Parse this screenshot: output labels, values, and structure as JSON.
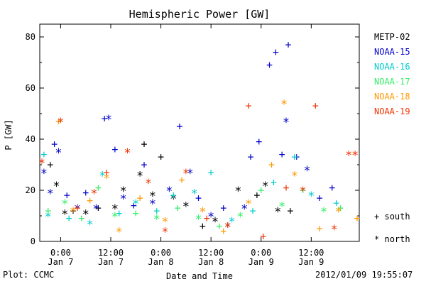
{
  "chart_data": {
    "type": "scatter",
    "title": "Hemispheric Power [GW]",
    "xlabel": "Date and Time",
    "ylabel": "P [GW]",
    "xlim": [
      "2012-01-06T19:00",
      "2012-01-09T23:30"
    ],
    "ylim": [
      0,
      85
    ],
    "y_ticks": [
      0,
      20,
      40,
      60,
      80
    ],
    "x_ticks": [
      {
        "time": "2012-01-07T00:00",
        "line1": "0:00",
        "line2": "Jan 7"
      },
      {
        "time": "2012-01-07T12:00",
        "line1": "12:00",
        "line2": "Jan 7"
      },
      {
        "time": "2012-01-08T00:00",
        "line1": "0:00",
        "line2": "Jan 8"
      },
      {
        "time": "2012-01-08T12:00",
        "line1": "12:00",
        "line2": "Jan 8"
      },
      {
        "time": "2012-01-09T00:00",
        "line1": "0:00",
        "line2": "Jan 9"
      },
      {
        "time": "2012-01-09T12:00",
        "line1": "12:00",
        "line2": "Jan 9"
      }
    ],
    "markers": {
      "south": "+",
      "north": "*"
    },
    "marker_legend": {
      "south": "south",
      "north": "north"
    },
    "series": [
      {
        "name": "METP-02",
        "color": "#000000",
        "points": [
          {
            "t": "2012-01-06T21:30",
            "p": 30,
            "h": "south"
          },
          {
            "t": "2012-01-06T23:00",
            "p": 22,
            "h": "north"
          },
          {
            "t": "2012-01-07T01:00",
            "p": 11,
            "h": "north"
          },
          {
            "t": "2012-01-07T03:00",
            "p": 12,
            "h": "south"
          },
          {
            "t": "2012-01-07T06:00",
            "p": 11,
            "h": "north"
          },
          {
            "t": "2012-01-07T09:00",
            "p": 13,
            "h": "south"
          },
          {
            "t": "2012-01-07T13:00",
            "p": 13,
            "h": "north"
          },
          {
            "t": "2012-01-07T15:00",
            "p": 20,
            "h": "north"
          },
          {
            "t": "2012-01-07T19:00",
            "p": 26,
            "h": "north"
          },
          {
            "t": "2012-01-07T20:00",
            "p": 38,
            "h": "south"
          },
          {
            "t": "2012-01-07T22:00",
            "p": 18,
            "h": "north"
          },
          {
            "t": "2012-01-08T00:00",
            "p": 33,
            "h": "south"
          },
          {
            "t": "2012-01-08T03:00",
            "p": 17,
            "h": "north"
          },
          {
            "t": "2012-01-08T06:00",
            "p": 14,
            "h": "north"
          },
          {
            "t": "2012-01-08T10:00",
            "p": 6,
            "h": "south"
          },
          {
            "t": "2012-01-08T13:00",
            "p": 8,
            "h": "north"
          },
          {
            "t": "2012-01-08T16:00",
            "p": 6,
            "h": "north"
          },
          {
            "t": "2012-01-08T18:30",
            "p": 20,
            "h": "north"
          },
          {
            "t": "2012-01-08T23:00",
            "p": 18,
            "h": "south"
          },
          {
            "t": "2012-01-09T01:00",
            "p": 22,
            "h": "north"
          },
          {
            "t": "2012-01-09T04:00",
            "p": 12,
            "h": "north"
          },
          {
            "t": "2012-01-09T07:00",
            "p": 12,
            "h": "south"
          }
        ]
      },
      {
        "name": "NOAA-15",
        "color": "#0000cc",
        "points": [
          {
            "t": "2012-01-06T20:00",
            "p": 27,
            "h": "north"
          },
          {
            "t": "2012-01-06T21:30",
            "p": 19,
            "h": "north"
          },
          {
            "t": "2012-01-06T22:30",
            "p": 38,
            "h": "south"
          },
          {
            "t": "2012-01-06T23:30",
            "p": 35,
            "h": "north"
          },
          {
            "t": "2012-01-07T01:30",
            "p": 18,
            "h": "south"
          },
          {
            "t": "2012-01-07T04:00",
            "p": 13,
            "h": "north"
          },
          {
            "t": "2012-01-07T06:00",
            "p": 19,
            "h": "south"
          },
          {
            "t": "2012-01-07T08:30",
            "p": 13,
            "h": "north"
          },
          {
            "t": "2012-01-07T10:30",
            "p": 48,
            "h": "south"
          },
          {
            "t": "2012-01-07T11:30",
            "p": 48,
            "h": "north"
          },
          {
            "t": "2012-01-07T13:00",
            "p": 36,
            "h": "south"
          },
          {
            "t": "2012-01-07T15:00",
            "p": 17,
            "h": "north"
          },
          {
            "t": "2012-01-07T17:30",
            "p": 14,
            "h": "south"
          },
          {
            "t": "2012-01-07T20:00",
            "p": 30,
            "h": "south"
          },
          {
            "t": "2012-01-07T22:00",
            "p": 15,
            "h": "north"
          },
          {
            "t": "2012-01-08T02:00",
            "p": 20,
            "h": "north"
          },
          {
            "t": "2012-01-08T04:30",
            "p": 45,
            "h": "south"
          },
          {
            "t": "2012-01-08T07:00",
            "p": 27,
            "h": "north"
          },
          {
            "t": "2012-01-08T09:00",
            "p": 17,
            "h": "south"
          },
          {
            "t": "2012-01-08T12:00",
            "p": 10,
            "h": "north"
          },
          {
            "t": "2012-01-08T15:00",
            "p": 13,
            "h": "south"
          },
          {
            "t": "2012-01-08T20:00",
            "p": 13,
            "h": "north"
          },
          {
            "t": "2012-01-08T21:30",
            "p": 33,
            "h": "south"
          },
          {
            "t": "2012-01-08T23:30",
            "p": 39,
            "h": "south"
          },
          {
            "t": "2012-01-09T02:00",
            "p": 69,
            "h": "south"
          },
          {
            "t": "2012-01-09T03:30",
            "p": 74,
            "h": "south"
          },
          {
            "t": "2012-01-09T05:00",
            "p": 34,
            "h": "south"
          },
          {
            "t": "2012-01-09T06:00",
            "p": 47,
            "h": "north"
          },
          {
            "t": "2012-01-09T06:30",
            "p": 77,
            "h": "south"
          },
          {
            "t": "2012-01-09T08:30",
            "p": 33,
            "h": "south"
          },
          {
            "t": "2012-01-09T11:00",
            "p": 28,
            "h": "north"
          },
          {
            "t": "2012-01-09T14:00",
            "p": 17,
            "h": "south"
          },
          {
            "t": "2012-01-09T17:00",
            "p": 21,
            "h": "south"
          }
        ]
      },
      {
        "name": "NOAA-16",
        "color": "#00cccc",
        "points": [
          {
            "t": "2012-01-06T20:00",
            "p": 34,
            "h": "south"
          },
          {
            "t": "2012-01-06T21:00",
            "p": 10,
            "h": "north"
          },
          {
            "t": "2012-01-07T02:00",
            "p": 9,
            "h": "south"
          },
          {
            "t": "2012-01-07T07:00",
            "p": 7,
            "h": "north"
          },
          {
            "t": "2012-01-07T10:00",
            "p": 26,
            "h": "north"
          },
          {
            "t": "2012-01-07T14:00",
            "p": 11,
            "h": "south"
          },
          {
            "t": "2012-01-07T18:00",
            "p": 15,
            "h": "north"
          },
          {
            "t": "2012-01-07T23:00",
            "p": 12,
            "h": "south"
          },
          {
            "t": "2012-01-08T03:00",
            "p": 18,
            "h": "south"
          },
          {
            "t": "2012-01-08T08:00",
            "p": 19,
            "h": "north"
          },
          {
            "t": "2012-01-08T12:00",
            "p": 27,
            "h": "south"
          },
          {
            "t": "2012-01-08T17:00",
            "p": 8,
            "h": "north"
          },
          {
            "t": "2012-01-08T22:00",
            "p": 12,
            "h": "south"
          },
          {
            "t": "2012-01-09T03:00",
            "p": 23,
            "h": "south"
          },
          {
            "t": "2012-01-09T08:00",
            "p": 33,
            "h": "south"
          },
          {
            "t": "2012-01-09T12:00",
            "p": 18,
            "h": "north"
          },
          {
            "t": "2012-01-09T18:00",
            "p": 15,
            "h": "south"
          }
        ]
      },
      {
        "name": "NOAA-17",
        "color": "#33ee66",
        "points": [
          {
            "t": "2012-01-06T21:00",
            "p": 12,
            "h": "south"
          },
          {
            "t": "2012-01-07T01:00",
            "p": 15,
            "h": "north"
          },
          {
            "t": "2012-01-07T05:00",
            "p": 9,
            "h": "south"
          },
          {
            "t": "2012-01-07T09:00",
            "p": 21,
            "h": "south"
          },
          {
            "t": "2012-01-07T13:00",
            "p": 10,
            "h": "north"
          },
          {
            "t": "2012-01-07T18:00",
            "p": 11,
            "h": "south"
          },
          {
            "t": "2012-01-07T23:00",
            "p": 9,
            "h": "north"
          },
          {
            "t": "2012-01-08T04:00",
            "p": 13,
            "h": "south"
          },
          {
            "t": "2012-01-08T09:00",
            "p": 9,
            "h": "north"
          },
          {
            "t": "2012-01-08T14:00",
            "p": 6,
            "h": "south"
          },
          {
            "t": "2012-01-08T19:00",
            "p": 10,
            "h": "north"
          },
          {
            "t": "2012-01-09T00:00",
            "p": 20,
            "h": "south"
          },
          {
            "t": "2012-01-09T05:00",
            "p": 14,
            "h": "north"
          },
          {
            "t": "2012-01-09T10:00",
            "p": 20,
            "h": "south"
          },
          {
            "t": "2012-01-09T15:00",
            "p": 12,
            "h": "north"
          },
          {
            "t": "2012-01-09T19:00",
            "p": 13,
            "h": "south"
          }
        ]
      },
      {
        "name": "NOAA-18",
        "color": "#ff9900",
        "points": [
          {
            "t": "2012-01-06T23:30",
            "p": 47,
            "h": "south"
          },
          {
            "t": "2012-01-07T03:00",
            "p": 12,
            "h": "north"
          },
          {
            "t": "2012-01-07T07:00",
            "p": 16,
            "h": "south"
          },
          {
            "t": "2012-01-07T11:00",
            "p": 25,
            "h": "north"
          },
          {
            "t": "2012-01-07T14:00",
            "p": 4,
            "h": "north"
          },
          {
            "t": "2012-01-07T19:00",
            "p": 17,
            "h": "south"
          },
          {
            "t": "2012-01-08T01:00",
            "p": 8,
            "h": "north"
          },
          {
            "t": "2012-01-08T05:00",
            "p": 24,
            "h": "south"
          },
          {
            "t": "2012-01-08T10:00",
            "p": 12,
            "h": "north"
          },
          {
            "t": "2012-01-08T15:00",
            "p": 4,
            "h": "south"
          },
          {
            "t": "2012-01-08T21:00",
            "p": 15,
            "h": "north"
          },
          {
            "t": "2012-01-09T02:30",
            "p": 30,
            "h": "south"
          },
          {
            "t": "2012-01-09T05:30",
            "p": 54,
            "h": "north"
          },
          {
            "t": "2012-01-09T08:00",
            "p": 26,
            "h": "north"
          },
          {
            "t": "2012-01-09T14:00",
            "p": 5,
            "h": "south"
          },
          {
            "t": "2012-01-09T18:30",
            "p": 12,
            "h": "north"
          },
          {
            "t": "2012-01-09T23:00",
            "p": 9,
            "h": "south"
          }
        ]
      },
      {
        "name": "NOAA-19",
        "color": "#ee3300",
        "points": [
          {
            "t": "2012-01-06T19:30",
            "p": 31,
            "h": "north"
          },
          {
            "t": "2012-01-07T00:00",
            "p": 47,
            "h": "north"
          },
          {
            "t": "2012-01-07T04:00",
            "p": 13,
            "h": "south"
          },
          {
            "t": "2012-01-07T08:00",
            "p": 19,
            "h": "north"
          },
          {
            "t": "2012-01-07T11:00",
            "p": 27,
            "h": "south"
          },
          {
            "t": "2012-01-07T16:00",
            "p": 35,
            "h": "north"
          },
          {
            "t": "2012-01-07T21:00",
            "p": 23,
            "h": "north"
          },
          {
            "t": "2012-01-08T01:00",
            "p": 4,
            "h": "north"
          },
          {
            "t": "2012-01-08T06:00",
            "p": 27,
            "h": "north"
          },
          {
            "t": "2012-01-08T11:00",
            "p": 9,
            "h": "south"
          },
          {
            "t": "2012-01-08T16:00",
            "p": 6,
            "h": "north"
          },
          {
            "t": "2012-01-08T21:00",
            "p": 53,
            "h": "south"
          },
          {
            "t": "2012-01-09T00:30",
            "p": 2,
            "h": "south"
          },
          {
            "t": "2012-01-09T06:00",
            "p": 21,
            "h": "south"
          },
          {
            "t": "2012-01-09T10:00",
            "p": 20,
            "h": "north"
          },
          {
            "t": "2012-01-09T13:00",
            "p": 53,
            "h": "south"
          },
          {
            "t": "2012-01-09T17:30",
            "p": 5,
            "h": "north"
          },
          {
            "t": "2012-01-09T21:00",
            "p": 34,
            "h": "north"
          },
          {
            "t": "2012-01-09T22:30",
            "p": 34,
            "h": "north"
          }
        ]
      }
    ]
  },
  "legend_colors": {
    "METP-02": "#000000",
    "NOAA-15": "#0000cc",
    "NOAA-16": "#00cccc",
    "NOAA-17": "#33ee66",
    "NOAA-18": "#ff9900",
    "NOAA-19": "#ee3300"
  },
  "footer": {
    "source": "Plot: CCMC",
    "timestamp": "2012/01/09 19:55:07"
  }
}
